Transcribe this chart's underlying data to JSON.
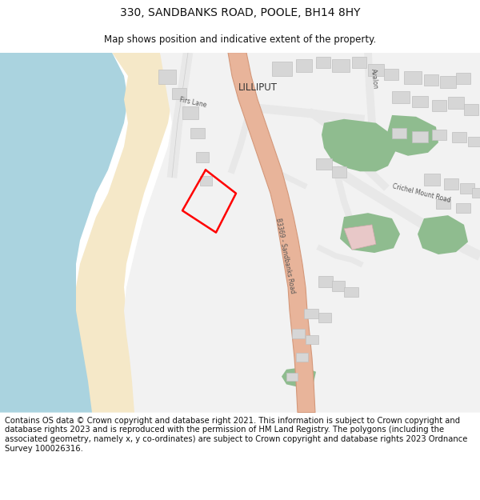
{
  "title": "330, SANDBANKS ROAD, POOLE, BH14 8HY",
  "subtitle": "Map shows position and indicative extent of the property.",
  "footer": "Contains OS data © Crown copyright and database right 2021. This information is subject to Crown copyright and database rights 2023 and is reproduced with the permission of HM Land Registry. The polygons (including the associated geometry, namely x, y co-ordinates) are subject to Crown copyright and database rights 2023 Ordnance Survey 100026316.",
  "bg_color": "#ffffff",
  "map_bg": "#f2f2f2",
  "water_color": "#aad3df",
  "beach_color": "#f5e8c8",
  "road_main_color": "#e8b49a",
  "road_outline_color": "#d4987a",
  "minor_road_color": "#e8e8e8",
  "green_color": "#8fbc8f",
  "building_color": "#d6d6d6",
  "building_outline": "#c0c0c0",
  "plot_outline_color": "#ff0000",
  "pink_bldg_color": "#e8c8c8",
  "title_fontsize": 10,
  "subtitle_fontsize": 8.5,
  "footer_fontsize": 7.2,
  "label_color": "#333333",
  "road_label_color": "#555555"
}
